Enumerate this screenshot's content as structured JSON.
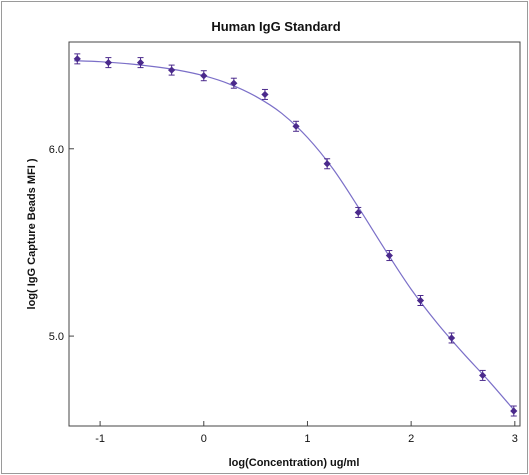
{
  "chart_data": {
    "type": "scatter",
    "title": "Human IgG Standard",
    "xlabel": "log(Concentration) ug/ml",
    "ylabel": "log( IgG Capture Beads MFI )",
    "xlim": [
      -1.3,
      3.05
    ],
    "ylim": [
      4.52,
      6.57
    ],
    "xticks": [
      -1,
      0,
      1,
      2,
      3
    ],
    "yticks": [
      5.0,
      6.0
    ],
    "xtick_labels": [
      "-1",
      "0",
      "1",
      "2",
      "3"
    ],
    "ytick_labels": [
      "5.0",
      "6.0"
    ],
    "grid": false,
    "series": [
      {
        "points": [
          {
            "x": -1.22,
            "y": 6.48
          },
          {
            "x": -0.92,
            "y": 6.46
          },
          {
            "x": -0.61,
            "y": 6.46
          },
          {
            "x": -0.31,
            "y": 6.42
          },
          {
            "x": 0.0,
            "y": 6.39
          },
          {
            "x": 0.29,
            "y": 6.35
          },
          {
            "x": 0.59,
            "y": 6.29
          },
          {
            "x": 0.89,
            "y": 6.12
          },
          {
            "x": 1.19,
            "y": 5.92
          },
          {
            "x": 1.49,
            "y": 5.66
          },
          {
            "x": 1.79,
            "y": 5.43
          },
          {
            "x": 2.09,
            "y": 5.19
          },
          {
            "x": 2.39,
            "y": 4.99
          },
          {
            "x": 2.69,
            "y": 4.79
          },
          {
            "x": 2.99,
            "y": 4.6
          }
        ],
        "fit_curve": [
          [
            -1.25,
            6.47
          ],
          [
            -1.0,
            6.465
          ],
          [
            -0.75,
            6.455
          ],
          [
            -0.5,
            6.44
          ],
          [
            -0.25,
            6.42
          ],
          [
            0.0,
            6.39
          ],
          [
            0.25,
            6.345
          ],
          [
            0.5,
            6.28
          ],
          [
            0.75,
            6.19
          ],
          [
            1.0,
            6.06
          ],
          [
            1.25,
            5.89
          ],
          [
            1.5,
            5.68
          ],
          [
            1.75,
            5.46
          ],
          [
            2.0,
            5.25
          ],
          [
            2.25,
            5.07
          ],
          [
            2.5,
            4.91
          ],
          [
            2.75,
            4.76
          ],
          [
            3.0,
            4.6
          ]
        ]
      }
    ]
  }
}
